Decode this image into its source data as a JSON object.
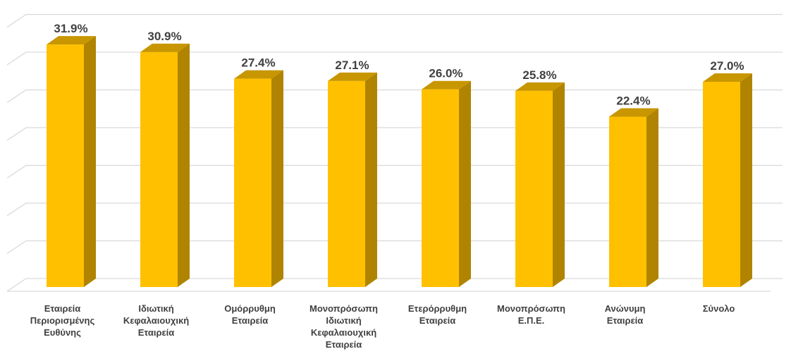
{
  "chart_data": {
    "type": "bar",
    "style": "3d-column",
    "categories": [
      [
        "Εταιρεία",
        "Περιορισμένης",
        "Ευθύνης"
      ],
      [
        "Ιδιωτική",
        "Κεφαλαιουχική",
        "Εταιρεία"
      ],
      [
        "Ομόρρυθμη",
        "Εταιρεία"
      ],
      [
        "Μονοπρόσωπη",
        "Ιδιωτική",
        "Κεφαλαιουχική",
        "Εταιρεία"
      ],
      [
        "Ετερόρρυθμη",
        "Εταιρεία"
      ],
      [
        "Μονοπρόσωπη",
        "Ε.Π.Ε."
      ],
      [
        "Ανώνυμη",
        "Εταιρεία"
      ],
      [
        "Σύνολο"
      ]
    ],
    "values": [
      31.9,
      30.9,
      27.4,
      27.1,
      26.0,
      25.8,
      22.4,
      27.0
    ],
    "value_labels": [
      "31.9%",
      "30.9%",
      "27.4%",
      "27.1%",
      "26.0%",
      "25.8%",
      "22.4%",
      "27.0%"
    ],
    "title": "",
    "xlabel": "",
    "ylabel": "",
    "ylim": [
      0,
      35
    ],
    "grid": true,
    "legend": "none",
    "colors": {
      "front": "#FFC000",
      "side": "#B08400",
      "top": "#C79600",
      "grid": "#D9D9D9",
      "label": "#404040"
    }
  }
}
